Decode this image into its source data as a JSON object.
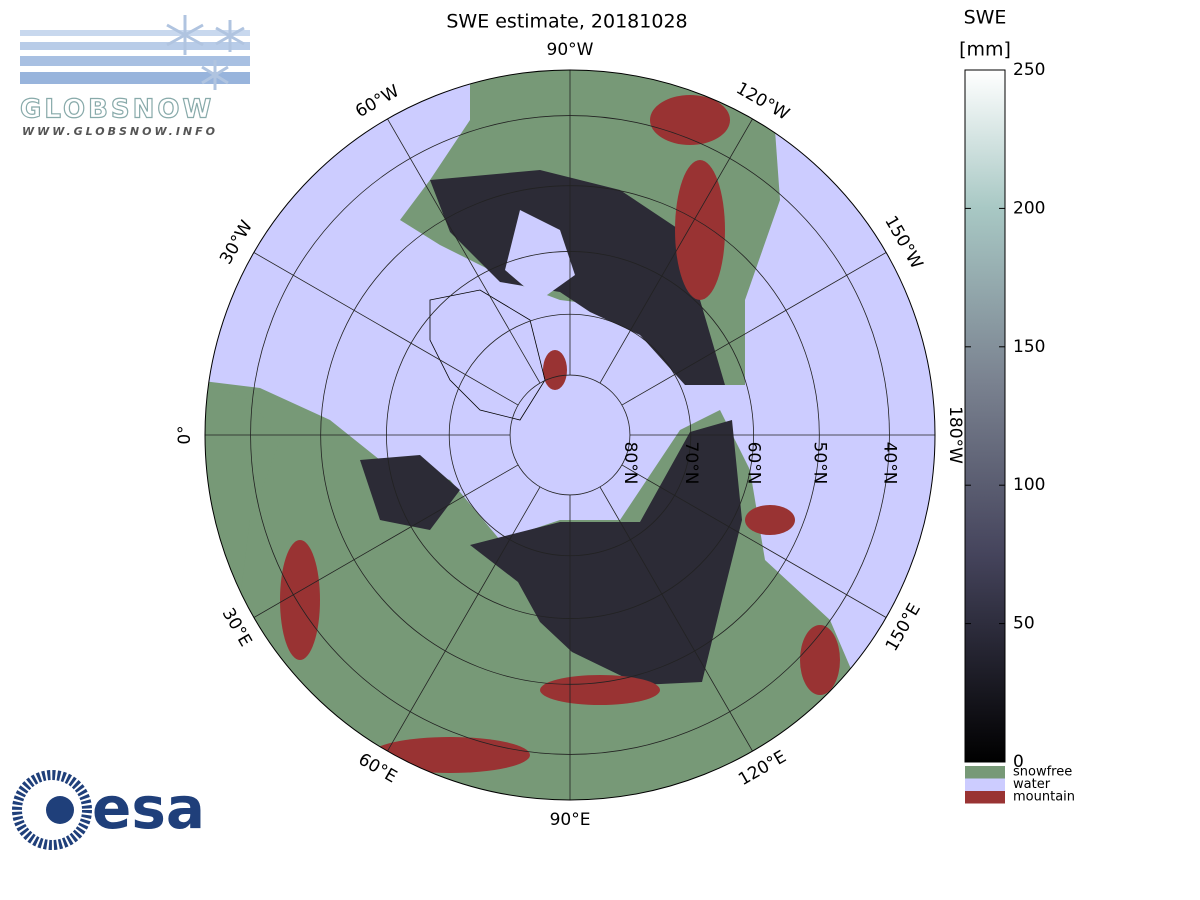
{
  "header": {
    "logo_text": "GLOBSNOW",
    "logo_url": "WWW.GLOBSNOW.INFO"
  },
  "map": {
    "title": "SWE estimate, 20181028",
    "meridians": [
      {
        "lon": 0,
        "label": "0°"
      },
      {
        "lon": -30,
        "label": "30°W"
      },
      {
        "lon": -60,
        "label": "60°W"
      },
      {
        "lon": -90,
        "label": "90°W"
      },
      {
        "lon": -120,
        "label": "120°W"
      },
      {
        "lon": -150,
        "label": "150°W"
      },
      {
        "lon": -180,
        "label": "180°W"
      },
      {
        "lon": 150,
        "label": "150°E"
      },
      {
        "lon": 120,
        "label": "120°E"
      },
      {
        "lon": 90,
        "label": "90°E"
      },
      {
        "lon": 60,
        "label": "60°E"
      },
      {
        "lon": 30,
        "label": "30°E"
      }
    ],
    "parallels": [
      {
        "lat": 80,
        "label": "80°N"
      },
      {
        "lat": 70,
        "label": "70°N"
      },
      {
        "lat": 60,
        "label": "60°N"
      },
      {
        "lat": 50,
        "label": "50°N"
      },
      {
        "lat": 40,
        "label": "40°N"
      }
    ]
  },
  "colorbar": {
    "title": "SWE",
    "unit": "[mm]",
    "lim": [
      0,
      250
    ],
    "ticks": [
      0,
      50,
      100,
      150,
      200,
      250
    ]
  },
  "legend": [
    {
      "label": "snowfree",
      "color": "#779977"
    },
    {
      "label": "water",
      "color": "#ccccff"
    },
    {
      "label": "mountain",
      "color": "#993333"
    }
  ],
  "footer": {
    "logo_text": "esa"
  }
}
